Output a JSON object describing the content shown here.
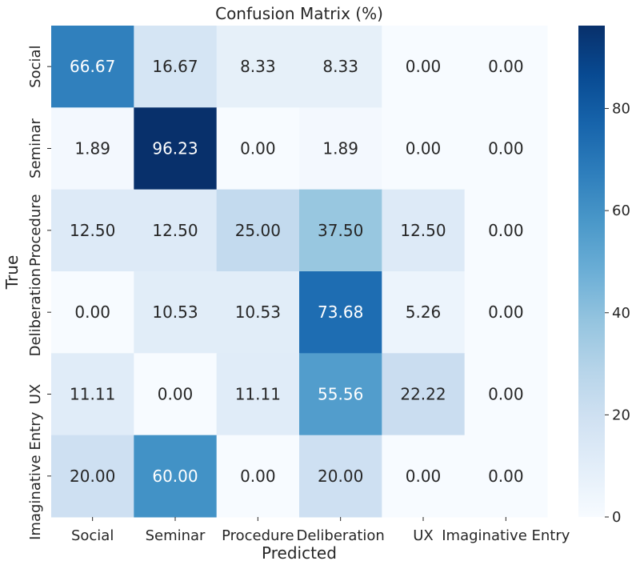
{
  "chart_data": {
    "type": "heatmap",
    "title": "Confusion Matrix (%)",
    "xlabel": "Predicted",
    "ylabel": "True",
    "x_categories": [
      "Social",
      "Seminar",
      "Procedure",
      "Deliberation",
      "UX",
      "Imaginative Entry"
    ],
    "y_categories": [
      "Social",
      "Seminar",
      "Procedure",
      "Deliberation",
      "UX",
      "Imaginative Entry"
    ],
    "cell_labels": [
      [
        "66.67",
        "16.67",
        "8.33",
        "8.33",
        "0.00",
        "0.00"
      ],
      [
        "1.89",
        "96.23",
        "0.00",
        "1.89",
        "0.00",
        "0.00"
      ],
      [
        "12.50",
        "12.50",
        "25.00",
        "37.50",
        "12.50",
        "0.00"
      ],
      [
        "0.00",
        "10.53",
        "10.53",
        "73.68",
        "5.26",
        "0.00"
      ],
      [
        "11.11",
        "0.00",
        "11.11",
        "55.56",
        "22.22",
        "0.00"
      ],
      [
        "20.00",
        "60.00",
        "0.00",
        "20.00",
        "0.00",
        "0.00"
      ]
    ],
    "values": [
      [
        66.67,
        16.67,
        8.33,
        8.33,
        0.0,
        0.0
      ],
      [
        1.89,
        96.23,
        0.0,
        1.89,
        0.0,
        0.0
      ],
      [
        12.5,
        12.5,
        25.0,
        37.5,
        12.5,
        0.0
      ],
      [
        0.0,
        10.53,
        10.53,
        73.68,
        5.26,
        0.0
      ],
      [
        11.11,
        0.0,
        11.11,
        55.56,
        22.22,
        0.0
      ],
      [
        20.0,
        60.0,
        0.0,
        20.0,
        0.0,
        0.0
      ]
    ],
    "colormap": "Blues",
    "color_scale_range": [
      0,
      96.23
    ],
    "colorbar_ticks": [
      0,
      20,
      40,
      60,
      80
    ],
    "colorbar_tick_labels": [
      "0",
      "20",
      "40",
      "60",
      "80"
    ],
    "grid": false,
    "colorbar_placement": "right"
  }
}
